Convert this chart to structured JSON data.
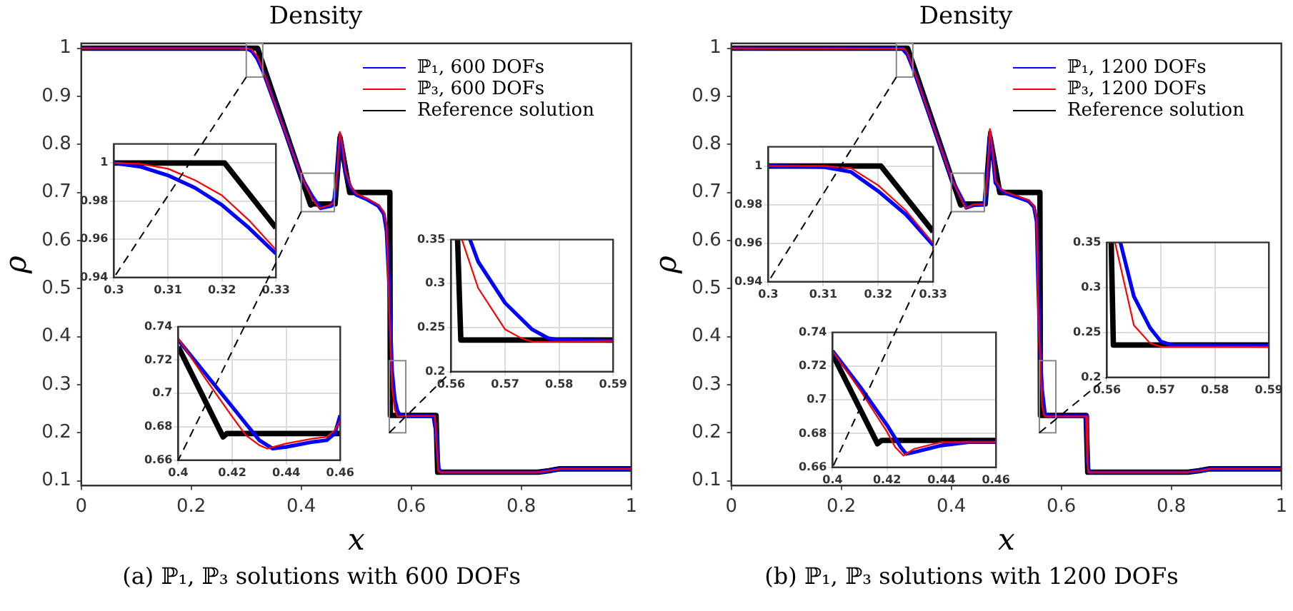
{
  "chart_data": [
    {
      "type": "line",
      "title": "Density",
      "xlabel": "x",
      "ylabel": "ρ",
      "xlim": [
        0,
        1
      ],
      "ylim": [
        0.09,
        1.01
      ],
      "xticks": [
        0,
        0.2,
        0.4,
        0.6,
        0.8,
        1
      ],
      "yticks": [
        0.1,
        0.2,
        0.3,
        0.4,
        0.5,
        0.6,
        0.7,
        0.8,
        0.9,
        1
      ],
      "grid": false,
      "legend": "top right",
      "annotations": [
        "(a) ℙ₁, ℙ₃ solutions with 600 DOFs"
      ],
      "series": [
        {
          "name": "ℙ₁, 600 DOFs",
          "color": "#0000ff",
          "x": [
            0,
            0.3,
            0.31,
            0.32,
            0.33,
            0.35,
            0.4,
            0.42,
            0.435,
            0.455,
            0.46,
            0.465,
            0.47,
            0.475,
            0.48,
            0.49,
            0.5,
            0.52,
            0.54,
            0.55,
            0.555,
            0.56,
            0.565,
            0.57,
            0.575,
            0.58,
            0.59,
            0.64,
            0.645,
            0.65,
            0.655,
            0.83,
            0.85,
            0.87,
            1
          ],
          "values": [
            1,
            1,
            0.994,
            0.978,
            0.953,
            0.89,
            0.732,
            0.692,
            0.667,
            0.672,
            0.687,
            0.74,
            0.82,
            0.79,
            0.74,
            0.71,
            0.695,
            0.685,
            0.672,
            0.655,
            0.62,
            0.5,
            0.33,
            0.27,
            0.245,
            0.236,
            0.235,
            0.235,
            0.2,
            0.125,
            0.118,
            0.118,
            0.121,
            0.125,
            0.125
          ]
        },
        {
          "name": "ℙ₃, 600 DOFs",
          "color": "#ff0000",
          "x": [
            0,
            0.3,
            0.31,
            0.32,
            0.33,
            0.35,
            0.4,
            0.42,
            0.433,
            0.45,
            0.458,
            0.46,
            0.465,
            0.47,
            0.475,
            0.48,
            0.49,
            0.5,
            0.52,
            0.54,
            0.55,
            0.555,
            0.56,
            0.565,
            0.57,
            0.575,
            0.59,
            0.643,
            0.645,
            0.649,
            0.652,
            0.83,
            0.85,
            0.87,
            1
          ],
          "values": [
            1,
            1,
            0.997,
            0.983,
            0.955,
            0.89,
            0.733,
            0.686,
            0.667,
            0.673,
            0.678,
            0.684,
            0.74,
            0.826,
            0.795,
            0.745,
            0.712,
            0.697,
            0.687,
            0.674,
            0.66,
            0.63,
            0.45,
            0.295,
            0.248,
            0.234,
            0.235,
            0.235,
            0.19,
            0.12,
            0.118,
            0.118,
            0.121,
            0.125,
            0.125
          ]
        },
        {
          "name": "Reference solution",
          "color": "#000000",
          "x": [
            0,
            0.3205,
            0.417,
            0.418,
            0.4615,
            0.4705,
            0.488,
            0.561,
            0.562,
            0.645,
            0.648,
            0.83,
            0.85,
            0.87,
            1
          ],
          "values": [
            1,
            1,
            0.674,
            0.676,
            0.676,
            0.814,
            0.7,
            0.7,
            0.236,
            0.236,
            0.118,
            0.118,
            0.121,
            0.125,
            0.125
          ]
        }
      ]
    },
    {
      "type": "line",
      "xlim": [
        0.3,
        0.33
      ],
      "ylim": [
        0.94,
        1.01
      ],
      "xticks": [
        0.3,
        0.31,
        0.32,
        0.33
      ],
      "yticks": [
        0.94,
        0.96,
        0.98,
        1
      ],
      "grid": true,
      "series": [
        {
          "color": "#0000ff",
          "x": [
            0.3,
            0.305,
            0.31,
            0.315,
            0.32,
            0.325,
            0.33
          ],
          "values": [
            1,
            0.998,
            0.9935,
            0.987,
            0.978,
            0.966,
            0.9525
          ]
        },
        {
          "color": "#ff0000",
          "x": [
            0.3,
            0.305,
            0.31,
            0.315,
            0.32,
            0.325,
            0.33
          ],
          "values": [
            1,
            0.9995,
            0.997,
            0.991,
            0.983,
            0.97,
            0.9545
          ]
        },
        {
          "color": "#000000",
          "x": [
            0.3,
            0.3205,
            0.33
          ],
          "values": [
            1,
            1,
            0.966
          ]
        }
      ]
    },
    {
      "type": "line",
      "xlim": [
        0.4,
        0.46
      ],
      "ylim": [
        0.66,
        0.74
      ],
      "xticks": [
        0.4,
        0.42,
        0.44,
        0.46
      ],
      "yticks": [
        0.66,
        0.68,
        0.7,
        0.72,
        0.74
      ],
      "grid": true,
      "series": [
        {
          "color": "#0000ff",
          "x": [
            0.4,
            0.41,
            0.42,
            0.425,
            0.43,
            0.435,
            0.44,
            0.45,
            0.455,
            0.458,
            0.46
          ],
          "values": [
            0.732,
            0.712,
            0.692,
            0.682,
            0.672,
            0.667,
            0.668,
            0.671,
            0.672,
            0.676,
            0.687
          ]
        },
        {
          "color": "#ff0000",
          "x": [
            0.4,
            0.41,
            0.42,
            0.425,
            0.43,
            0.433,
            0.44,
            0.45,
            0.455,
            0.458,
            0.46
          ],
          "values": [
            0.733,
            0.709,
            0.686,
            0.675,
            0.669,
            0.667,
            0.67,
            0.673,
            0.674,
            0.678,
            0.684
          ]
        },
        {
          "color": "#000000",
          "x": [
            0.4,
            0.4166,
            0.418,
            0.46
          ],
          "values": [
            0.728,
            0.674,
            0.676,
            0.676
          ]
        }
      ]
    },
    {
      "type": "line",
      "xlim": [
        0.56,
        0.59
      ],
      "ylim": [
        0.2,
        0.35
      ],
      "xticks": [
        0.56,
        0.57,
        0.58,
        0.59
      ],
      "yticks": [
        0.2,
        0.25,
        0.3,
        0.35
      ],
      "grid": true,
      "series": [
        {
          "color": "#0000ff",
          "x": [
            0.5635,
            0.565,
            0.57,
            0.575,
            0.578,
            0.58,
            0.59
          ],
          "values": [
            0.35,
            0.325,
            0.278,
            0.248,
            0.238,
            0.236,
            0.235
          ]
        },
        {
          "color": "#ff0000",
          "x": [
            0.562,
            0.565,
            0.57,
            0.573,
            0.575,
            0.58,
            0.59
          ],
          "values": [
            0.35,
            0.295,
            0.248,
            0.238,
            0.234,
            0.234,
            0.235
          ]
        },
        {
          "color": "#000000",
          "x": [
            0.5612,
            0.5618,
            0.59
          ],
          "values": [
            0.35,
            0.236,
            0.236
          ]
        }
      ]
    },
    {
      "type": "line",
      "title": "Density",
      "xlabel": "x",
      "ylabel": "ρ",
      "xlim": [
        0,
        1
      ],
      "ylim": [
        0.09,
        1.01
      ],
      "xticks": [
        0,
        0.2,
        0.4,
        0.6,
        0.8,
        1
      ],
      "yticks": [
        0.1,
        0.2,
        0.3,
        0.4,
        0.5,
        0.6,
        0.7,
        0.8,
        0.9,
        1
      ],
      "grid": false,
      "legend": "top right",
      "annotations": [
        "(b) ℙ₁, ℙ₃ solutions with 1200 DOFs"
      ],
      "series": [
        {
          "name": "ℙ₁, 1200 DOFs",
          "color": "#0000ff",
          "x": [
            0,
            0.31,
            0.32,
            0.33,
            0.35,
            0.4,
            0.42,
            0.427,
            0.44,
            0.46,
            0.465,
            0.47,
            0.475,
            0.48,
            0.49,
            0.5,
            0.52,
            0.54,
            0.55,
            0.555,
            0.558,
            0.562,
            0.565,
            0.57,
            0.575,
            0.645,
            0.647,
            0.65,
            0.83,
            0.85,
            0.87,
            1
          ],
          "values": [
            1,
            1,
            0.987,
            0.959,
            0.893,
            0.729,
            0.685,
            0.668,
            0.673,
            0.675,
            0.72,
            0.825,
            0.78,
            0.72,
            0.705,
            0.698,
            0.69,
            0.682,
            0.67,
            0.64,
            0.5,
            0.35,
            0.29,
            0.24,
            0.235,
            0.235,
            0.15,
            0.118,
            0.118,
            0.121,
            0.125,
            0.125
          ]
        },
        {
          "name": "ℙ₃, 1200 DOFs",
          "color": "#ff0000",
          "x": [
            0,
            0.315,
            0.32,
            0.33,
            0.35,
            0.4,
            0.42,
            0.426,
            0.44,
            0.46,
            0.465,
            0.47,
            0.475,
            0.48,
            0.49,
            0.5,
            0.52,
            0.54,
            0.55,
            0.555,
            0.558,
            0.5615,
            0.565,
            0.568,
            0.57,
            0.645,
            0.647,
            0.649,
            0.83,
            0.85,
            0.87,
            1
          ],
          "values": [
            1,
            0.999,
            0.99,
            0.96,
            0.894,
            0.729,
            0.681,
            0.667,
            0.675,
            0.675,
            0.73,
            0.832,
            0.785,
            0.725,
            0.707,
            0.7,
            0.692,
            0.684,
            0.672,
            0.645,
            0.45,
            0.35,
            0.258,
            0.238,
            0.234,
            0.234,
            0.14,
            0.118,
            0.118,
            0.121,
            0.125,
            0.125
          ]
        },
        {
          "name": "Reference solution",
          "color": "#000000",
          "x": [
            0,
            0.3205,
            0.417,
            0.418,
            0.4615,
            0.4705,
            0.488,
            0.561,
            0.562,
            0.645,
            0.648,
            0.83,
            0.85,
            0.87,
            1
          ],
          "values": [
            1,
            1,
            0.674,
            0.676,
            0.676,
            0.814,
            0.7,
            0.7,
            0.236,
            0.236,
            0.118,
            0.118,
            0.121,
            0.125,
            0.125
          ]
        }
      ]
    },
    {
      "type": "line",
      "xlim": [
        0.3,
        0.33
      ],
      "ylim": [
        0.94,
        1.01
      ],
      "xticks": [
        0.3,
        0.31,
        0.32,
        0.33
      ],
      "yticks": [
        0.94,
        0.96,
        0.98,
        1
      ],
      "grid": true,
      "series": [
        {
          "color": "#0000ff",
          "x": [
            0.3,
            0.31,
            0.315,
            0.32,
            0.325,
            0.33
          ],
          "values": [
            1,
            0.9995,
            0.997,
            0.987,
            0.975,
            0.959
          ]
        },
        {
          "color": "#ff0000",
          "x": [
            0.3,
            0.31,
            0.315,
            0.32,
            0.325,
            0.33
          ],
          "values": [
            1,
            1,
            0.999,
            0.99,
            0.977,
            0.96
          ]
        },
        {
          "color": "#000000",
          "x": [
            0.3,
            0.3205,
            0.33
          ],
          "values": [
            1,
            1,
            0.966
          ]
        }
      ]
    },
    {
      "type": "line",
      "xlim": [
        0.4,
        0.46
      ],
      "ylim": [
        0.66,
        0.74
      ],
      "xticks": [
        0.4,
        0.42,
        0.44,
        0.46
      ],
      "yticks": [
        0.66,
        0.68,
        0.7,
        0.72,
        0.74
      ],
      "grid": true,
      "series": [
        {
          "color": "#0000ff",
          "x": [
            0.4,
            0.41,
            0.42,
            0.425,
            0.427,
            0.43,
            0.44,
            0.45,
            0.46
          ],
          "values": [
            0.729,
            0.708,
            0.685,
            0.672,
            0.668,
            0.669,
            0.673,
            0.675,
            0.675
          ]
        },
        {
          "color": "#ff0000",
          "x": [
            0.4,
            0.41,
            0.42,
            0.423,
            0.426,
            0.43,
            0.44,
            0.46
          ],
          "values": [
            0.729,
            0.706,
            0.681,
            0.672,
            0.667,
            0.671,
            0.675,
            0.675
          ]
        },
        {
          "color": "#000000",
          "x": [
            0.4,
            0.4165,
            0.418,
            0.46
          ],
          "values": [
            0.727,
            0.674,
            0.676,
            0.676
          ]
        }
      ]
    },
    {
      "type": "line",
      "xlim": [
        0.56,
        0.59
      ],
      "ylim": [
        0.2,
        0.35
      ],
      "xticks": [
        0.56,
        0.57,
        0.58,
        0.59
      ],
      "yticks": [
        0.2,
        0.25,
        0.3,
        0.35
      ],
      "grid": true,
      "series": [
        {
          "color": "#0000ff",
          "x": [
            0.5625,
            0.565,
            0.568,
            0.57,
            0.572,
            0.59
          ],
          "values": [
            0.35,
            0.29,
            0.255,
            0.24,
            0.236,
            0.235
          ]
        },
        {
          "color": "#ff0000",
          "x": [
            0.5615,
            0.565,
            0.568,
            0.57,
            0.59
          ],
          "values": [
            0.35,
            0.258,
            0.238,
            0.234,
            0.234
          ]
        },
        {
          "color": "#000000",
          "x": [
            0.5608,
            0.5612,
            0.59
          ],
          "values": [
            0.35,
            0.236,
            0.236
          ]
        }
      ]
    }
  ]
}
